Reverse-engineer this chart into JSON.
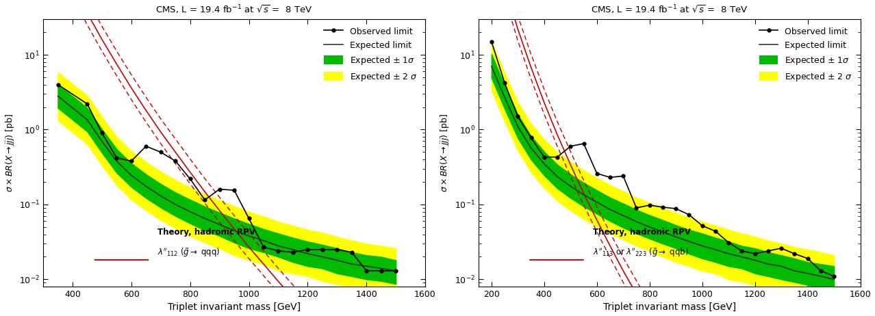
{
  "title": "CMS, L = 19.4 fb$^{-1}$ at $\\sqrt{s}$ =  8 TeV",
  "xlabel": "Triplet invariant mass [GeV]",
  "left": {
    "xlim": [
      300,
      1600
    ],
    "ylim": [
      0.008,
      30
    ],
    "xticks": [
      400,
      600,
      800,
      1000,
      1200,
      1400,
      1600
    ],
    "ylabel": "$\\sigma \\times BR(X \\rightarrow jjj)$ [pb]",
    "theory_label_line1": "Theory, hadronic RPV",
    "theory_label_line2": "$\\lambda''_{112}$ ($\\tilde{g} \\rightarrow$ qqq)",
    "theory_x": [
      300,
      350,
      400,
      450,
      500,
      550,
      600,
      650,
      700,
      750,
      800,
      850,
      900,
      950,
      1000,
      1050,
      1100,
      1150,
      1200
    ],
    "theory_c": [
      600,
      220,
      85,
      36,
      16,
      7.5,
      3.6,
      1.8,
      0.93,
      0.5,
      0.27,
      0.148,
      0.083,
      0.047,
      0.027,
      0.016,
      0.0094,
      0.0056,
      0.0034
    ],
    "theory_up": [
      900,
      330,
      128,
      54,
      24,
      11.2,
      5.4,
      2.7,
      1.39,
      0.75,
      0.405,
      0.222,
      0.125,
      0.071,
      0.041,
      0.024,
      0.014,
      0.0084,
      0.0051
    ],
    "theory_down": [
      420,
      154,
      59,
      25,
      11.2,
      5.25,
      2.52,
      1.26,
      0.651,
      0.35,
      0.189,
      0.104,
      0.058,
      0.033,
      0.019,
      0.0112,
      0.0066,
      0.0039,
      0.0024
    ],
    "obs_x": [
      350,
      450,
      500,
      550,
      600,
      650,
      700,
      750,
      800,
      850,
      900,
      950,
      1000,
      1050,
      1100,
      1150,
      1200,
      1250,
      1300,
      1350,
      1400,
      1450,
      1500
    ],
    "obs_y": [
      4.0,
      2.2,
      0.9,
      0.42,
      0.38,
      0.6,
      0.5,
      0.38,
      0.22,
      0.115,
      0.16,
      0.155,
      0.065,
      0.027,
      0.024,
      0.023,
      0.025,
      0.025,
      0.025,
      0.023,
      0.013,
      0.013,
      0.013
    ],
    "exp_x": [
      350,
      450,
      500,
      550,
      600,
      650,
      700,
      750,
      800,
      850,
      900,
      950,
      1000,
      1050,
      1100,
      1150,
      1200,
      1250,
      1300,
      1350,
      1400,
      1450,
      1500
    ],
    "exp_y": [
      2.8,
      1.35,
      0.7,
      0.38,
      0.245,
      0.175,
      0.13,
      0.1,
      0.08,
      0.065,
      0.054,
      0.045,
      0.038,
      0.033,
      0.028,
      0.025,
      0.022,
      0.02,
      0.018,
      0.016,
      0.015,
      0.014,
      0.013
    ],
    "exp1s_up": [
      4.0,
      1.95,
      1.01,
      0.55,
      0.355,
      0.253,
      0.188,
      0.145,
      0.116,
      0.094,
      0.078,
      0.065,
      0.055,
      0.047,
      0.041,
      0.036,
      0.032,
      0.029,
      0.026,
      0.023,
      0.021,
      0.02,
      0.018
    ],
    "exp1s_dn": [
      1.95,
      0.94,
      0.49,
      0.265,
      0.171,
      0.122,
      0.091,
      0.07,
      0.056,
      0.045,
      0.038,
      0.031,
      0.026,
      0.023,
      0.02,
      0.017,
      0.015,
      0.014,
      0.012,
      0.011,
      0.01,
      0.0095,
      0.0087
    ],
    "exp2s_up": [
      5.8,
      2.85,
      1.48,
      0.8,
      0.518,
      0.369,
      0.274,
      0.211,
      0.169,
      0.137,
      0.114,
      0.095,
      0.08,
      0.069,
      0.059,
      0.052,
      0.046,
      0.042,
      0.037,
      0.033,
      0.03,
      0.028,
      0.026
    ],
    "exp2s_dn": [
      1.33,
      0.64,
      0.334,
      0.181,
      0.116,
      0.083,
      0.062,
      0.048,
      0.038,
      0.031,
      0.026,
      0.021,
      0.018,
      0.016,
      0.013,
      0.012,
      0.011,
      0.0095,
      0.0086,
      0.0077,
      0.007,
      0.0064,
      0.0059
    ]
  },
  "right": {
    "xlim": [
      150,
      1600
    ],
    "ylim": [
      0.008,
      30
    ],
    "xticks": [
      200,
      400,
      600,
      800,
      1000,
      1200,
      1400,
      1600
    ],
    "ylabel": "$\\sigma \\times BR(X \\rightarrow jjj)$ [pb]",
    "theory_label_line1": "Theory, hadronic RPV",
    "theory_label_line2": "$\\lambda''_{113}$ or $\\lambda''_{223}$ ($\\tilde{g} \\rightarrow$ qqb)",
    "theory_x": [
      150,
      175,
      200,
      250,
      300,
      350,
      400,
      450,
      500,
      550,
      600,
      650,
      700,
      750,
      800,
      850,
      900,
      950,
      1000,
      1050,
      1100
    ],
    "theory_c": [
      3000,
      1000,
      380,
      85,
      22,
      6.8,
      2.3,
      0.85,
      0.34,
      0.14,
      0.062,
      0.028,
      0.013,
      0.0064,
      0.0032,
      0.0016,
      0.00083,
      0.00043,
      0.00023,
      0.00012,
      6.5e-05
    ],
    "theory_up": [
      4500,
      1500,
      570,
      128,
      33,
      10.2,
      3.45,
      1.275,
      0.51,
      0.21,
      0.093,
      0.042,
      0.0195,
      0.0096,
      0.0048,
      0.0024,
      0.00124,
      0.000645,
      0.000345,
      0.00018,
      9.75e-05
    ],
    "theory_down": [
      2100,
      700,
      266,
      59.5,
      15.4,
      4.76,
      1.61,
      0.595,
      0.238,
      0.098,
      0.0434,
      0.0196,
      0.0091,
      0.00448,
      0.00224,
      0.00112,
      0.000581,
      0.000301,
      0.000161,
      8.4e-05,
      4.55e-05
    ],
    "obs_x": [
      200,
      250,
      300,
      350,
      400,
      450,
      500,
      550,
      600,
      650,
      700,
      750,
      800,
      850,
      900,
      950,
      1000,
      1050,
      1100,
      1150,
      1200,
      1250,
      1300,
      1350,
      1400,
      1450,
      1500
    ],
    "obs_y": [
      15.0,
      4.2,
      1.5,
      0.78,
      0.43,
      0.43,
      0.6,
      0.65,
      0.26,
      0.23,
      0.24,
      0.09,
      0.098,
      0.092,
      0.088,
      0.073,
      0.052,
      0.044,
      0.031,
      0.024,
      0.022,
      0.024,
      0.026,
      0.022,
      0.019,
      0.013,
      0.011
    ],
    "exp_x": [
      200,
      250,
      300,
      350,
      400,
      450,
      500,
      550,
      600,
      650,
      700,
      750,
      800,
      850,
      900,
      950,
      1000,
      1050,
      1100,
      1150,
      1200,
      1250,
      1300,
      1350,
      1400,
      1450,
      1500
    ],
    "exp_y": [
      7.0,
      2.7,
      1.1,
      0.57,
      0.35,
      0.235,
      0.175,
      0.135,
      0.107,
      0.086,
      0.071,
      0.059,
      0.05,
      0.043,
      0.037,
      0.032,
      0.028,
      0.025,
      0.022,
      0.02,
      0.018,
      0.016,
      0.015,
      0.013,
      0.012,
      0.011,
      0.01
    ],
    "exp1s_up": [
      10.2,
      3.9,
      1.59,
      0.824,
      0.507,
      0.34,
      0.253,
      0.195,
      0.155,
      0.124,
      0.103,
      0.085,
      0.072,
      0.062,
      0.053,
      0.046,
      0.041,
      0.036,
      0.032,
      0.028,
      0.026,
      0.023,
      0.021,
      0.019,
      0.017,
      0.016,
      0.015
    ],
    "exp1s_dn": [
      4.9,
      1.89,
      0.77,
      0.399,
      0.245,
      0.164,
      0.122,
      0.094,
      0.075,
      0.06,
      0.049,
      0.041,
      0.035,
      0.03,
      0.026,
      0.022,
      0.019,
      0.017,
      0.015,
      0.014,
      0.012,
      0.011,
      0.01,
      0.0092,
      0.0084,
      0.0076,
      0.007
    ],
    "exp2s_up": [
      14.9,
      5.7,
      2.32,
      1.2,
      0.739,
      0.496,
      0.369,
      0.285,
      0.226,
      0.181,
      0.15,
      0.124,
      0.105,
      0.09,
      0.077,
      0.067,
      0.059,
      0.052,
      0.046,
      0.041,
      0.037,
      0.033,
      0.03,
      0.027,
      0.025,
      0.023,
      0.021
    ],
    "exp2s_dn": [
      3.34,
      1.29,
      0.525,
      0.272,
      0.167,
      0.112,
      0.083,
      0.064,
      0.051,
      0.041,
      0.034,
      0.028,
      0.024,
      0.02,
      0.017,
      0.015,
      0.013,
      0.012,
      0.01,
      0.0093,
      0.0083,
      0.0075,
      0.0068,
      0.0061,
      0.0056,
      0.0051,
      0.0047
    ]
  },
  "colors": {
    "observed": "#000000",
    "expected": "#333333",
    "band1s": "#00bb00",
    "band2s": "#ffff00",
    "theory": "#cc0000"
  }
}
